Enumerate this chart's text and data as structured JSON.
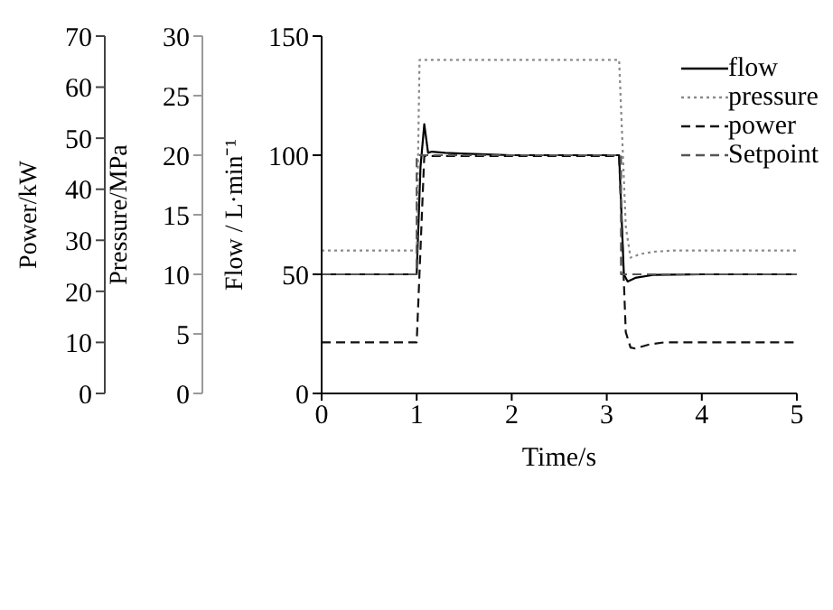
{
  "chart_data": {
    "type": "line",
    "xlabel": "Time/s",
    "ylabel": "Flow / L·min⁻¹",
    "y2label": "Pressure/MPa",
    "y3label": "Power/kW",
    "xlim": [
      0,
      5
    ],
    "xticks": [
      0,
      1,
      2,
      3,
      4,
      5
    ],
    "ylim": [
      0,
      150
    ],
    "yticks": [
      0,
      50,
      100,
      150
    ],
    "y2lim": [
      0,
      30
    ],
    "y2ticks": [
      0,
      5,
      10,
      15,
      20,
      25,
      30
    ],
    "y3lim": [
      0,
      70
    ],
    "y3ticks": [
      0,
      10,
      20,
      30,
      40,
      50,
      60,
      70
    ],
    "legend": "top right",
    "marker": "none",
    "series": [
      {
        "name": "flow",
        "color": "#000000",
        "line_style": "solid",
        "x": [
          0,
          1.0,
          1.04,
          1.08,
          1.12,
          1.16,
          1.3,
          1.6,
          2.0,
          3.13,
          3.18,
          3.22,
          3.3,
          3.5,
          4.0,
          5.0
        ],
        "values": [
          50,
          50,
          95,
          113,
          101,
          101.5,
          101,
          100.5,
          100,
          100,
          50,
          47,
          48.5,
          49.8,
          50,
          50
        ]
      },
      {
        "name": "pressure",
        "color": "#8a8a8a",
        "line_style": "dotted",
        "axis": "y2",
        "x": [
          0,
          1.0,
          1.03,
          3.13,
          3.2,
          3.25,
          3.35,
          3.5,
          3.7,
          5.0
        ],
        "values": [
          12,
          12,
          28,
          28,
          14,
          11.4,
          11.7,
          11.9,
          12,
          12
        ]
      },
      {
        "name": "power",
        "color": "#111111",
        "line_style": "dashed",
        "axis": "y3",
        "x": [
          0,
          1.0,
          1.08,
          1.15,
          3.13,
          3.2,
          3.25,
          3.3,
          3.45,
          3.6,
          5.0
        ],
        "values": [
          10,
          10,
          46.5,
          46.5,
          46.5,
          12,
          9,
          8.8,
          9.6,
          10,
          10
        ]
      },
      {
        "name": "Setpoint",
        "color": "#555555",
        "line_style": "dashed",
        "x": [
          0,
          1.0,
          1.0,
          3.15,
          3.15,
          5.0
        ],
        "values": [
          50,
          50,
          100,
          100,
          50,
          50
        ]
      }
    ]
  }
}
